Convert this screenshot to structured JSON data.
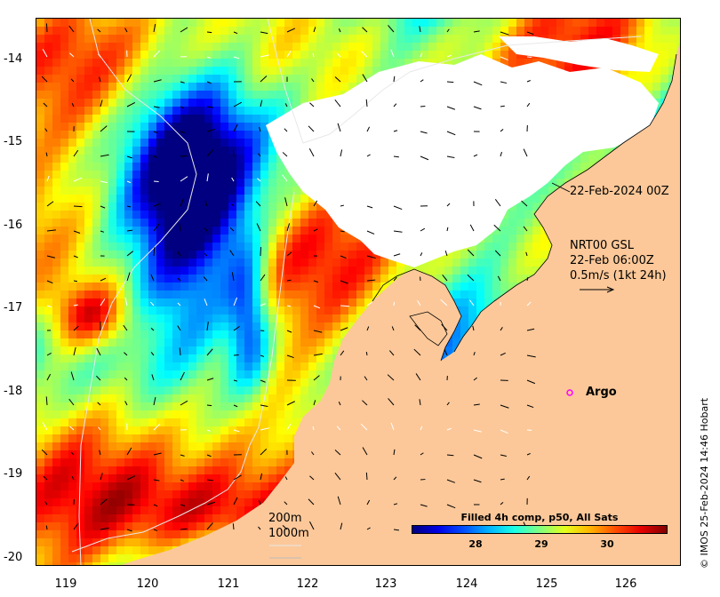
{
  "map": {
    "lat_ticks": [
      "-14",
      "-15",
      "-16",
      "-17",
      "-18",
      "-19",
      "-20"
    ],
    "lon_ticks": [
      "119",
      "120",
      "121",
      "122",
      "123",
      "124",
      "125",
      "126"
    ],
    "lat_range": [
      -20.15,
      -13.5
    ],
    "lon_range": [
      118.65,
      126.65
    ]
  },
  "annotations": {
    "date_label": "22-Feb-2024 00Z",
    "product_line1": "NRT00 GSL",
    "product_line2": "22-Feb 06:00Z",
    "product_line3": "0.5m/s (1kt 24h)",
    "argo_label": "Argo",
    "depth_200": "200m",
    "depth_1000": "1000m"
  },
  "colorbar": {
    "title": "Filled 4h comp, p50, All Sats",
    "ticks": [
      "28",
      "29",
      "30"
    ],
    "range": [
      27.0,
      30.8
    ]
  },
  "credit": "© IMOS 25-Feb-2024 14:46 Hobart",
  "colors": {
    "land": "#fcc899",
    "cloud": "#ffffff",
    "argo": "#ff00ff"
  }
}
